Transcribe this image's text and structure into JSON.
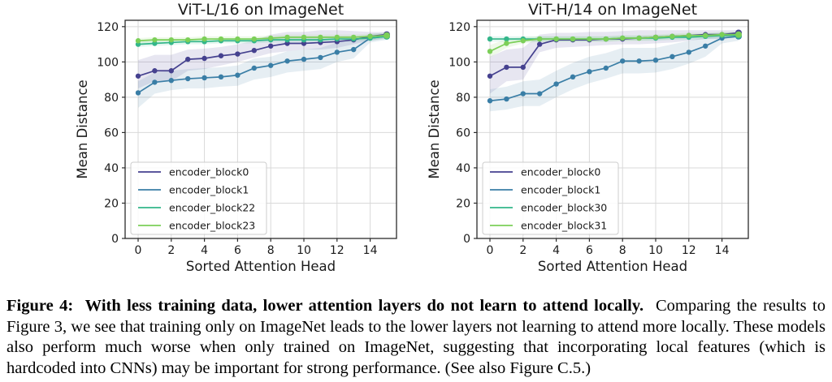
{
  "colors": {
    "grid": "#d9d9d9",
    "spine": "#2b2b2b",
    "text": "#1a1a1a",
    "legend_border": "#cccccc",
    "background": "#ffffff"
  },
  "caption": {
    "bold": "Figure 4:  With less training data, lower attention layers do not learn to attend locally.",
    "rest": "  Comparing the results to Figure 3, we see that training only on ImageNet leads to the lower layers not learning to attend more locally. These models also perform much worse when only trained on ImageNet, suggesting that incorporating local features (which is hardcoded into CNNs) may be important for strong performance. (See also Figure C.5.)"
  },
  "chart_data": [
    {
      "type": "line",
      "title": "ViT-L/16 on ImageNet",
      "xlabel": "Sorted Attention Head",
      "ylabel": "Mean Distance",
      "grid": true,
      "legend_position": "lower left",
      "x": [
        0,
        1,
        2,
        3,
        4,
        5,
        6,
        7,
        8,
        9,
        10,
        11,
        12,
        13,
        14,
        15
      ],
      "x_ticks": [
        0,
        2,
        4,
        6,
        8,
        10,
        12,
        14
      ],
      "y_ticks": [
        0,
        20,
        40,
        60,
        80,
        100,
        120
      ],
      "ylim": [
        0,
        123.6
      ],
      "series": [
        {
          "name": "encoder_block0",
          "color": "#45418f",
          "values": [
            92,
            95,
            95,
            101.5,
            102,
            103.5,
            104.5,
            106.5,
            109,
            110.5,
            110.5,
            111,
            111.5,
            112.5,
            114.5,
            115.5
          ],
          "band_upper": [
            101,
            104,
            104,
            107,
            107.5,
            108.5,
            110,
            112,
            115.5,
            117,
            117,
            118,
            118,
            117.5,
            117,
            117
          ],
          "band_lower": [
            85,
            89,
            89,
            95,
            96,
            98,
            100,
            102.5,
            105,
            106,
            107,
            107,
            108,
            110,
            112,
            113.5
          ]
        },
        {
          "name": "encoder_block1",
          "color": "#3a7ea6",
          "values": [
            82.5,
            88.5,
            89.5,
            90.5,
            91,
            91.5,
            92.5,
            96.5,
            98,
            100.5,
            101.5,
            102.5,
            105.5,
            107,
            113.5,
            114.5
          ],
          "band_upper": [
            89,
            94,
            95,
            96,
            96.5,
            97,
            98,
            102,
            103,
            106,
            107,
            108,
            111,
            112,
            116,
            116.5
          ],
          "band_lower": [
            74,
            82,
            84,
            85,
            85,
            86,
            86.5,
            90,
            91.5,
            94,
            95,
            96,
            100,
            102,
            111,
            112.5
          ]
        },
        {
          "name": "encoder_block22",
          "color": "#33b68a",
          "values": [
            110,
            110.5,
            111,
            111.5,
            111.5,
            112,
            112,
            112,
            112.5,
            112.5,
            112.5,
            112.5,
            113,
            113,
            113.5,
            114.5
          ],
          "band_upper": [
            111.5,
            112,
            112.5,
            113,
            113,
            113.5,
            113.5,
            113.5,
            114,
            114,
            114,
            114,
            114.5,
            114.5,
            115,
            116
          ],
          "band_lower": [
            108.5,
            109,
            109.5,
            110,
            110,
            110.5,
            110.5,
            110.5,
            111,
            111,
            111,
            111,
            111.5,
            111.5,
            112,
            113
          ]
        },
        {
          "name": "encoder_block23",
          "color": "#7ccf58",
          "values": [
            112,
            112.5,
            112.5,
            112.5,
            113,
            113,
            113,
            113,
            113.5,
            114,
            114,
            114,
            114,
            114,
            114.5,
            115
          ],
          "band_upper": [
            113.5,
            114,
            114,
            114,
            114.5,
            114.5,
            114.5,
            114.5,
            115,
            115.5,
            115.5,
            115.5,
            115.5,
            115.5,
            116,
            116.5
          ],
          "band_lower": [
            110.5,
            111,
            111,
            111,
            111.5,
            111.5,
            111.5,
            111.5,
            112,
            112.5,
            112.5,
            112.5,
            112.5,
            112.5,
            113,
            113.5
          ]
        }
      ]
    },
    {
      "type": "line",
      "title": "ViT-H/14 on ImageNet",
      "xlabel": "Sorted Attention Head",
      "ylabel": "Mean Distance",
      "grid": true,
      "legend_position": "lower left",
      "x": [
        0,
        1,
        2,
        3,
        4,
        5,
        6,
        7,
        8,
        9,
        10,
        11,
        12,
        13,
        14,
        15
      ],
      "x_ticks": [
        0,
        2,
        4,
        6,
        8,
        10,
        12,
        14
      ],
      "y_ticks": [
        0,
        20,
        40,
        60,
        80,
        100,
        120
      ],
      "ylim": [
        0,
        123.6
      ],
      "series": [
        {
          "name": "encoder_block0",
          "color": "#45418f",
          "values": [
            92,
            97,
            97,
            110,
            112.5,
            112.5,
            112.5,
            113,
            113,
            113.5,
            114,
            114.5,
            115,
            115.5,
            115.5,
            116.5
          ],
          "band_upper": [
            103,
            107,
            108,
            115.5,
            116.5,
            116.5,
            117,
            117,
            117.5,
            118,
            118,
            118,
            118,
            118,
            118,
            118
          ],
          "band_lower": [
            82,
            89,
            90,
            105.5,
            108,
            108.5,
            109,
            109.5,
            110,
            110,
            110.5,
            111,
            112,
            113,
            113,
            114.5
          ]
        },
        {
          "name": "encoder_block1",
          "color": "#3a7ea6",
          "values": [
            78,
            79,
            82,
            82,
            87.5,
            91.5,
            94.5,
            96.5,
            100.5,
            100.5,
            101,
            103,
            105.5,
            109,
            113.5,
            114.5
          ],
          "band_upper": [
            84.5,
            86,
            89,
            90,
            95,
            99.5,
            103,
            105,
            108,
            108,
            108,
            110,
            112,
            114,
            116.5,
            117
          ],
          "band_lower": [
            72,
            73,
            75,
            75,
            80,
            84.5,
            88,
            90.5,
            93.5,
            93.5,
            94,
            96,
            99,
            103,
            110.5,
            112
          ]
        },
        {
          "name": "encoder_block30",
          "color": "#33b68a",
          "values": [
            113,
            113,
            113,
            113,
            113,
            113,
            113,
            113,
            113.5,
            113.5,
            113.5,
            114,
            114,
            114.5,
            115,
            115
          ],
          "band_upper": [
            114.5,
            114.5,
            114.5,
            114.5,
            114.5,
            114.5,
            114.5,
            114.5,
            115,
            115,
            115,
            115.5,
            115.5,
            116,
            116.5,
            116.5
          ],
          "band_lower": [
            111.5,
            111.5,
            111.5,
            111.5,
            111.5,
            111.5,
            111.5,
            111.5,
            112,
            112,
            112,
            112.5,
            112.5,
            113,
            113.5,
            113.5
          ]
        },
        {
          "name": "encoder_block31",
          "color": "#7ccf58",
          "values": [
            106,
            110.5,
            112,
            113,
            113,
            113,
            113,
            113,
            113.5,
            113.5,
            114,
            114.5,
            115,
            115,
            115.5,
            115.5
          ],
          "band_upper": [
            109.5,
            113,
            114,
            114.5,
            114.5,
            114.5,
            114.5,
            114.5,
            115,
            115,
            115.5,
            116,
            116.5,
            116.5,
            117,
            117
          ],
          "band_lower": [
            102.5,
            108,
            110.5,
            111.5,
            111.5,
            111.5,
            111.5,
            111.5,
            112,
            112,
            112.5,
            113,
            113.5,
            113.5,
            114,
            114
          ]
        }
      ]
    }
  ]
}
